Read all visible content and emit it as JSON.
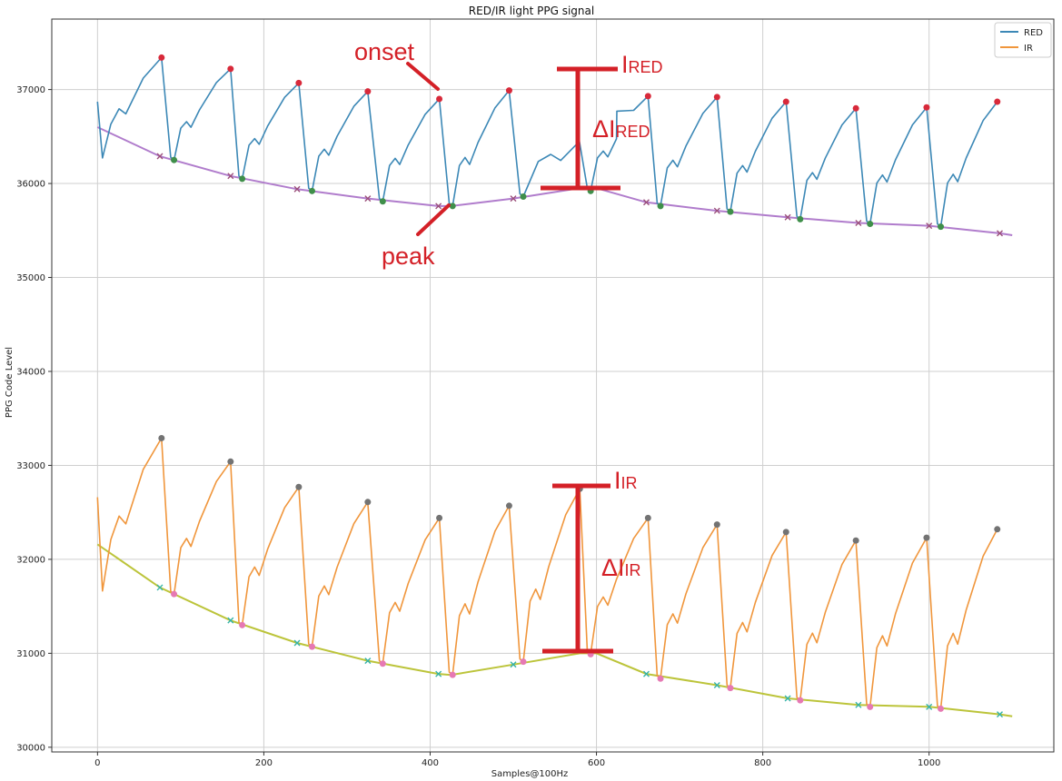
{
  "chart_data": {
    "type": "line",
    "title": "RED/IR light PPG signal",
    "xlabel": "Samples@100Hz",
    "ylabel": "PPG Code Level",
    "xlim": [
      -55,
      1150
    ],
    "ylim": [
      29950,
      37750
    ],
    "x_ticks": [
      0,
      200,
      400,
      600,
      800,
      1000
    ],
    "y_ticks": [
      30000,
      31000,
      32000,
      33000,
      34000,
      35000,
      36000,
      37000
    ],
    "grid": true,
    "legend": {
      "placement": "top-right",
      "entries": [
        "RED",
        "IR"
      ]
    },
    "colors": {
      "red_series": "#3c88b6",
      "ir_series": "#f0963c",
      "red_baseline": "#b07ccc",
      "ir_baseline": "#bcc43a",
      "red_peak_marker": "#d8293a",
      "onset_marker": "#3f8f4a",
      "ir_peak_marker": "#737373",
      "ir_onset_marker": "#e679b3",
      "red_baseline_x": "#9a4e7a",
      "ir_baseline_x": "#34b3a8",
      "annotation": "#d42027"
    },
    "series": [
      {
        "name": "RED",
        "baseline": [
          [
            0,
            36600
          ],
          [
            75,
            36290
          ],
          [
            160,
            36080
          ],
          [
            240,
            35940
          ],
          [
            325,
            35840
          ],
          [
            410,
            35760
          ],
          [
            425,
            35760
          ],
          [
            500,
            35840
          ],
          [
            580,
            35950
          ],
          [
            600,
            35950
          ],
          [
            660,
            35800
          ],
          [
            745,
            35710
          ],
          [
            830,
            35640
          ],
          [
            915,
            35580
          ],
          [
            1000,
            35550
          ],
          [
            1085,
            35470
          ],
          [
            1100,
            35450
          ]
        ],
        "baseline_markers_x": [
          [
            75,
            36290
          ],
          [
            160,
            36080
          ],
          [
            240,
            35940
          ],
          [
            325,
            35840
          ],
          [
            410,
            35760
          ],
          [
            500,
            35840
          ],
          [
            660,
            35800
          ],
          [
            745,
            35710
          ],
          [
            830,
            35640
          ],
          [
            915,
            35580
          ],
          [
            1000,
            35550
          ],
          [
            1085,
            35470
          ]
        ],
        "peaks": [
          [
            77,
            37340
          ],
          [
            160,
            37220
          ],
          [
            242,
            37070
          ],
          [
            325,
            36980
          ],
          [
            411,
            36900
          ],
          [
            495,
            36990
          ],
          [
            662,
            36930
          ],
          [
            745,
            36920
          ],
          [
            828,
            36870
          ],
          [
            912,
            36800
          ],
          [
            997,
            36810
          ],
          [
            1082,
            36870
          ]
        ],
        "onsets": [
          [
            92,
            36250
          ],
          [
            174,
            36050
          ],
          [
            258,
            35920
          ],
          [
            343,
            35810
          ],
          [
            427,
            35760
          ],
          [
            512,
            35860
          ],
          [
            593,
            35920
          ],
          [
            677,
            35760
          ],
          [
            761,
            35700
          ],
          [
            845,
            35620
          ],
          [
            929,
            35570
          ],
          [
            1014,
            35540
          ]
        ],
        "start": [
          0,
          36870
        ],
        "end": [
          1100,
          35580
        ]
      },
      {
        "name": "IR",
        "baseline": [
          [
            0,
            32160
          ],
          [
            75,
            31700
          ],
          [
            160,
            31350
          ],
          [
            240,
            31110
          ],
          [
            325,
            30920
          ],
          [
            410,
            30780
          ],
          [
            425,
            30770
          ],
          [
            500,
            30880
          ],
          [
            580,
            31000
          ],
          [
            600,
            31000
          ],
          [
            660,
            30780
          ],
          [
            745,
            30660
          ],
          [
            830,
            30520
          ],
          [
            915,
            30450
          ],
          [
            1000,
            30430
          ],
          [
            1085,
            30350
          ],
          [
            1100,
            30330
          ]
        ],
        "baseline_markers_x": [
          [
            75,
            31700
          ],
          [
            160,
            31350
          ],
          [
            240,
            31110
          ],
          [
            325,
            30920
          ],
          [
            410,
            30780
          ],
          [
            500,
            30880
          ],
          [
            660,
            30780
          ],
          [
            745,
            30660
          ],
          [
            830,
            30520
          ],
          [
            915,
            30450
          ],
          [
            1000,
            30430
          ],
          [
            1085,
            30350
          ]
        ],
        "peaks": [
          [
            77,
            33290
          ],
          [
            160,
            33040
          ],
          [
            242,
            32770
          ],
          [
            325,
            32610
          ],
          [
            411,
            32440
          ],
          [
            495,
            32570
          ],
          [
            580,
            32750
          ],
          [
            662,
            32440
          ],
          [
            745,
            32370
          ],
          [
            828,
            32290
          ],
          [
            912,
            32200
          ],
          [
            997,
            32230
          ],
          [
            1082,
            32320
          ]
        ],
        "onsets": [
          [
            92,
            31630
          ],
          [
            174,
            31300
          ],
          [
            258,
            31070
          ],
          [
            343,
            30890
          ],
          [
            427,
            30770
          ],
          [
            512,
            30910
          ],
          [
            593,
            30990
          ],
          [
            677,
            30730
          ],
          [
            761,
            30630
          ],
          [
            845,
            30500
          ],
          [
            929,
            30430
          ],
          [
            1014,
            30410
          ]
        ],
        "start": [
          0,
          32660
        ],
        "end": [
          1100,
          30470
        ]
      }
    ],
    "annotations": {
      "onset": "onset",
      "peak": "peak",
      "i_red_main": "I",
      "i_red_sub": "RED",
      "delta_red_main": "ΔI",
      "delta_red_sub": "RED",
      "i_ir_main": "I",
      "i_ir_sub": "IR",
      "delta_ir_main": "ΔI",
      "delta_ir_sub": "IR",
      "red_bar": {
        "x": 580,
        "top": 37170,
        "bottom": 35900
      },
      "ir_bar": {
        "x": 580,
        "top": 32750,
        "bottom": 31000
      }
    }
  }
}
